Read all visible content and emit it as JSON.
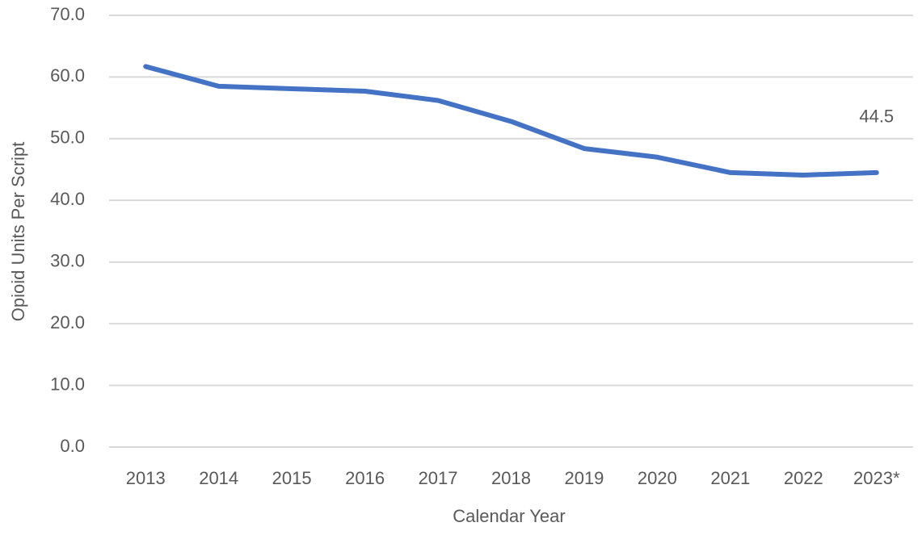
{
  "chart_data": {
    "type": "line",
    "x_label": "Calendar Year",
    "y_label": "Opioid Units Per Script",
    "categories": [
      "2013",
      "2014",
      "2015",
      "2016",
      "2017",
      "2018",
      "2019",
      "2020",
      "2021",
      "2022",
      "2023*"
    ],
    "values": [
      61.7,
      58.5,
      58.1,
      57.7,
      56.2,
      52.8,
      48.4,
      47.0,
      44.5,
      44.1,
      44.5
    ],
    "color": "#4472c4",
    "ylim": [
      0,
      70
    ],
    "yticks": [
      {
        "value": 0,
        "label": "0.0"
      },
      {
        "value": 10,
        "label": "10.0"
      },
      {
        "value": 20,
        "label": "20.0"
      },
      {
        "value": 30,
        "label": "30.0"
      },
      {
        "value": 40,
        "label": "40.0"
      },
      {
        "value": 50,
        "label": "50.0"
      },
      {
        "value": 60,
        "label": "60.0"
      },
      {
        "value": 70,
        "label": "70.0"
      }
    ],
    "grid": true,
    "labeled_points": [
      10
    ]
  }
}
